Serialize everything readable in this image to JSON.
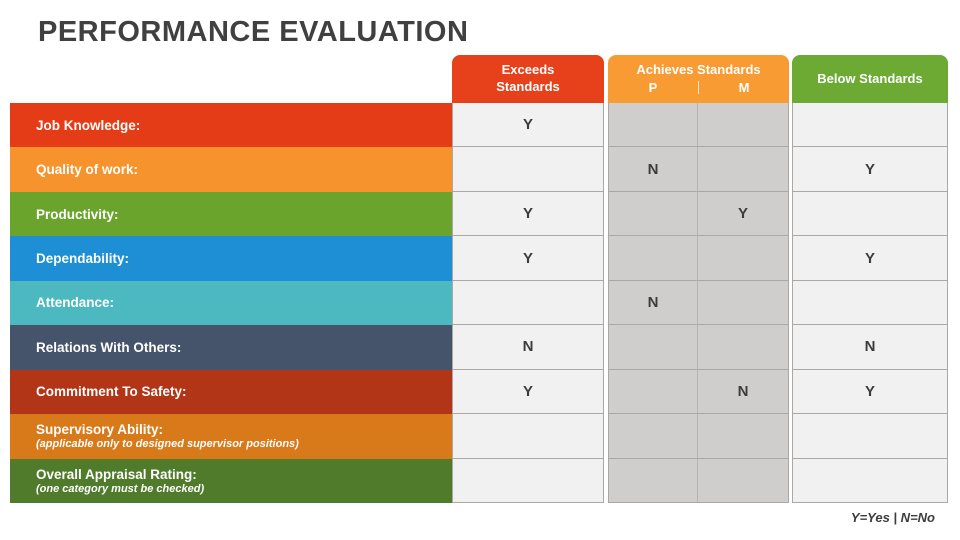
{
  "title": "PERFORMANCE EVALUATION",
  "legend": "Y=Yes | N=No",
  "colors": {
    "header_exceeds": "#e6411b",
    "header_achieves": "#f99b33",
    "header_below": "#6caa34",
    "cell_light": "#f1f1f1",
    "cell_dark": "#d0cdcd",
    "text_dark": "#3c3c3c"
  },
  "columns": {
    "exceeds": {
      "label": "Exceeds Standards",
      "color": "#e6411b"
    },
    "achieves": {
      "label": "Achieves Standards",
      "sub_p": "P",
      "sub_m": "M",
      "color": "#f99b33"
    },
    "below": {
      "label": "Below Standards",
      "color": "#6caa34"
    }
  },
  "rows": [
    {
      "label": "Job Knowledge:",
      "sublabel": "",
      "color": "#e33c16",
      "exceeds": "Y",
      "p": "",
      "m": "",
      "below": ""
    },
    {
      "label": "Quality of work:",
      "sublabel": "",
      "color": "#f7932c",
      "exceeds": "",
      "p": "N",
      "m": "",
      "below": "Y"
    },
    {
      "label": "Productivity:",
      "sublabel": "",
      "color": "#6ba42d",
      "exceeds": "Y",
      "p": "",
      "m": "Y",
      "below": ""
    },
    {
      "label": "Dependability:",
      "sublabel": "",
      "color": "#1e8fd5",
      "exceeds": "Y",
      "p": "",
      "m": "",
      "below": "Y"
    },
    {
      "label": "Attendance:",
      "sublabel": "",
      "color": "#4cb9c1",
      "exceeds": "",
      "p": "N",
      "m": "",
      "below": ""
    },
    {
      "label": "Relations With Others:",
      "sublabel": "",
      "color": "#45546a",
      "exceeds": "N",
      "p": "",
      "m": "",
      "below": "N"
    },
    {
      "label": "Commitment To Safety:",
      "sublabel": "",
      "color": "#b33517",
      "exceeds": "Y",
      "p": "",
      "m": "N",
      "below": "Y"
    },
    {
      "label": "Supervisory Ability:",
      "sublabel": "(applicable only to designed supervisor positions)",
      "color": "#d8791a",
      "exceeds": "",
      "p": "",
      "m": "",
      "below": ""
    },
    {
      "label": "Overall Appraisal Rating:",
      "sublabel": "(one category must be checked)",
      "color": "#4f7b2b",
      "exceeds": "",
      "p": "",
      "m": "",
      "below": ""
    }
  ]
}
